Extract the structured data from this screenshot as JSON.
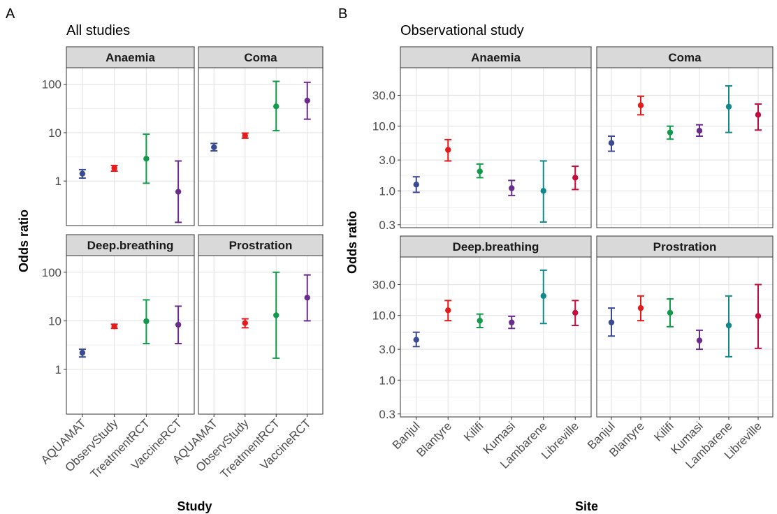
{
  "figure": {
    "panel_a_letter": "A",
    "panel_b_letter": "B",
    "colors": {
      "AQUAMAT": "#3b4b92",
      "ObservStudy": "#e41a1c",
      "TreatmentRCT": "#119a4a",
      "VaccineRCT": "#6a2c8a",
      "Banjul": "#3b4b92",
      "Blantyre": "#e41a1c",
      "Kilifi": "#119a4a",
      "Kumasi": "#6a2c8a",
      "Lambarene": "#11898a",
      "Libreville": "#c40c3c"
    }
  },
  "chart_data": [
    {
      "type": "scatter",
      "title": "All studies",
      "xlabel": "Study",
      "ylabel": "Odds ratio",
      "yscale": "log10",
      "ylim": [
        0.12,
        220
      ],
      "yticks": [
        {
          "value": 1,
          "label": "1"
        },
        {
          "value": 10,
          "label": "10"
        },
        {
          "value": 100,
          "label": "100"
        }
      ],
      "categories": [
        "AQUAMAT",
        "ObservStudy",
        "TreatmentRCT",
        "VaccineRCT"
      ],
      "facets": [
        {
          "name": "Anaemia",
          "points": [
            {
              "x": "AQUAMAT",
              "y": 1.42,
              "low": 1.15,
              "high": 1.72
            },
            {
              "x": "ObservStudy",
              "y": 1.85,
              "low": 1.6,
              "high": 2.1
            },
            {
              "x": "TreatmentRCT",
              "y": 2.9,
              "low": 0.9,
              "high": 9.3
            },
            {
              "x": "VaccineRCT",
              "y": 0.6,
              "low": 0.14,
              "high": 2.6
            }
          ]
        },
        {
          "name": "Coma",
          "points": [
            {
              "x": "AQUAMAT",
              "y": 5.0,
              "low": 4.2,
              "high": 6.0
            },
            {
              "x": "ObservStudy",
              "y": 8.7,
              "low": 7.7,
              "high": 9.8
            },
            {
              "x": "TreatmentRCT",
              "y": 35,
              "low": 11,
              "high": 115
            },
            {
              "x": "VaccineRCT",
              "y": 46,
              "low": 19,
              "high": 110
            }
          ]
        },
        {
          "name": "Deep.breathing",
          "points": [
            {
              "x": "AQUAMAT",
              "y": 2.2,
              "low": 1.8,
              "high": 2.6
            },
            {
              "x": "ObservStudy",
              "y": 7.7,
              "low": 7.0,
              "high": 8.5
            },
            {
              "x": "TreatmentRCT",
              "y": 9.8,
              "low": 3.4,
              "high": 27
            },
            {
              "x": "VaccineRCT",
              "y": 8.3,
              "low": 3.4,
              "high": 20
            }
          ]
        },
        {
          "name": "Prostration",
          "points": [
            {
              "x": "ObservStudy",
              "y": 9.0,
              "low": 7.2,
              "high": 11
            },
            {
              "x": "TreatmentRCT",
              "y": 13,
              "low": 1.7,
              "high": 100
            },
            {
              "x": "VaccineRCT",
              "y": 30,
              "low": 10,
              "high": 88
            }
          ]
        }
      ]
    },
    {
      "type": "scatter",
      "title": "Observational study",
      "xlabel": "Site",
      "ylabel": "Odds ratio",
      "yscale": "log10",
      "ylim": [
        0.27,
        80
      ],
      "yticks": [
        {
          "value": 0.3,
          "label": "0.3"
        },
        {
          "value": 1,
          "label": "1.0"
        },
        {
          "value": 3,
          "label": "3.0"
        },
        {
          "value": 10,
          "label": "10.0"
        },
        {
          "value": 30,
          "label": "30.0"
        }
      ],
      "categories": [
        "Banjul",
        "Blantyre",
        "Kilifi",
        "Kumasi",
        "Lambarene",
        "Libreville"
      ],
      "facets": [
        {
          "name": "Anaemia",
          "points": [
            {
              "x": "Banjul",
              "y": 1.25,
              "low": 0.95,
              "high": 1.65
            },
            {
              "x": "Blantyre",
              "y": 4.3,
              "low": 2.9,
              "high": 6.2
            },
            {
              "x": "Kilifi",
              "y": 2.0,
              "low": 1.6,
              "high": 2.6
            },
            {
              "x": "Kumasi",
              "y": 1.1,
              "low": 0.85,
              "high": 1.45
            },
            {
              "x": "Lambarene",
              "y": 1.0,
              "low": 0.33,
              "high": 2.9
            },
            {
              "x": "Libreville",
              "y": 1.6,
              "low": 1.05,
              "high": 2.4
            }
          ]
        },
        {
          "name": "Coma",
          "points": [
            {
              "x": "Banjul",
              "y": 5.5,
              "low": 4.1,
              "high": 7.0
            },
            {
              "x": "Blantyre",
              "y": 21,
              "low": 15,
              "high": 29
            },
            {
              "x": "Kilifi",
              "y": 8.0,
              "low": 6.3,
              "high": 10
            },
            {
              "x": "Kumasi",
              "y": 8.5,
              "low": 7.0,
              "high": 10.5
            },
            {
              "x": "Lambarene",
              "y": 20,
              "low": 8.0,
              "high": 42
            },
            {
              "x": "Libreville",
              "y": 15,
              "low": 8.7,
              "high": 22
            }
          ]
        },
        {
          "name": "Deep.breathing",
          "points": [
            {
              "x": "Banjul",
              "y": 4.2,
              "low": 3.3,
              "high": 5.5
            },
            {
              "x": "Blantyre",
              "y": 12,
              "low": 8.3,
              "high": 17
            },
            {
              "x": "Kilifi",
              "y": 8.3,
              "low": 6.5,
              "high": 10.5
            },
            {
              "x": "Kumasi",
              "y": 7.8,
              "low": 6.3,
              "high": 9.7
            },
            {
              "x": "Lambarene",
              "y": 20,
              "low": 7.5,
              "high": 50
            },
            {
              "x": "Libreville",
              "y": 11,
              "low": 7.0,
              "high": 17
            }
          ]
        },
        {
          "name": "Prostration",
          "points": [
            {
              "x": "Banjul",
              "y": 7.8,
              "low": 4.8,
              "high": 13
            },
            {
              "x": "Blantyre",
              "y": 13,
              "low": 8.3,
              "high": 20
            },
            {
              "x": "Kilifi",
              "y": 11,
              "low": 6.7,
              "high": 18
            },
            {
              "x": "Kumasi",
              "y": 4.1,
              "low": 3.0,
              "high": 5.9
            },
            {
              "x": "Lambarene",
              "y": 7.0,
              "low": 2.3,
              "high": 20
            },
            {
              "x": "Libreville",
              "y": 9.8,
              "low": 3.1,
              "high": 30
            }
          ]
        }
      ]
    }
  ]
}
